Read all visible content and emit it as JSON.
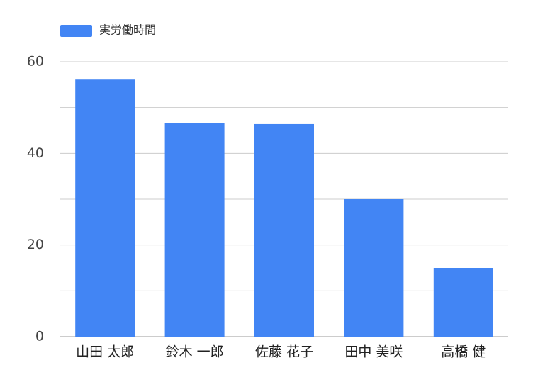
{
  "chart_data": {
    "type": "bar",
    "categories": [
      "山田 太郎",
      "鈴木 一郎",
      "佐藤 花子",
      "田中 美咲",
      "高橋 健"
    ],
    "series": [
      {
        "name": "実労働時間",
        "color": "#4285f4",
        "values": [
          56.1,
          46.7,
          46.4,
          30.0,
          15.0
        ]
      }
    ],
    "ylim": [
      0,
      60
    ],
    "yticks": [
      0,
      20,
      40,
      60
    ],
    "minor_grid": [
      10,
      30,
      50
    ],
    "grid": true
  }
}
